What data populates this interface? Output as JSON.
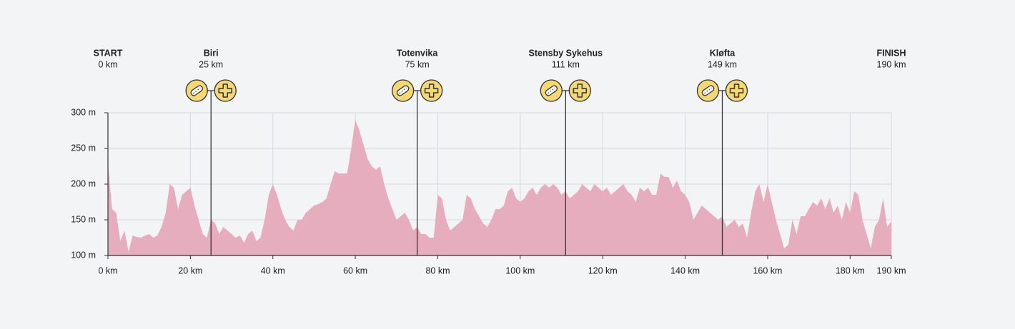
{
  "chart_data": {
    "type": "area",
    "color": "#e6adbf",
    "grid": true,
    "xlim": [
      0,
      190
    ],
    "ylim": [
      100,
      300
    ],
    "xticks": [
      {
        "value": 0,
        "label": "0 km"
      },
      {
        "value": 20,
        "label": "20 km"
      },
      {
        "value": 40,
        "label": "40 km"
      },
      {
        "value": 60,
        "label": "60 km"
      },
      {
        "value": 80,
        "label": "80 km"
      },
      {
        "value": 100,
        "label": "100 km"
      },
      {
        "value": 120,
        "label": "120 km"
      },
      {
        "value": 140,
        "label": "140 km"
      },
      {
        "value": 160,
        "label": "160 km"
      },
      {
        "value": 180,
        "label": "180 km"
      },
      {
        "value": 190,
        "label": "190 km"
      }
    ],
    "yticks": [
      {
        "value": 100,
        "label": "100 m"
      },
      {
        "value": 150,
        "label": "150 m"
      },
      {
        "value": 200,
        "label": "200 m"
      },
      {
        "value": 250,
        "label": "250 m"
      },
      {
        "value": 300,
        "label": "300 m"
      }
    ],
    "checkpoints": [
      {
        "name": "START",
        "km": 0,
        "km_label": "0 km"
      },
      {
        "name": "Biri",
        "km": 25,
        "km_label": "25 km"
      },
      {
        "name": "Totenvika",
        "km": 75,
        "km_label": "75 km"
      },
      {
        "name": "Stensby Sykehus",
        "km": 111,
        "km_label": "111 km"
      },
      {
        "name": "Kløfta",
        "km": 149,
        "km_label": "149 km"
      },
      {
        "name": "FINISH",
        "km": 190,
        "km_label": "190 km"
      }
    ],
    "x": [
      0,
      1,
      2,
      3,
      4,
      5,
      6,
      7,
      8,
      9,
      10,
      11,
      12,
      13,
      14,
      15,
      16,
      17,
      18,
      19,
      20,
      21,
      22,
      23,
      24,
      25,
      26,
      27,
      28,
      29,
      30,
      31,
      32,
      33,
      34,
      35,
      36,
      37,
      38,
      39,
      40,
      41,
      42,
      43,
      44,
      45,
      46,
      47,
      48,
      49,
      50,
      51,
      52,
      53,
      54,
      55,
      56,
      57,
      58,
      59,
      60,
      61,
      62,
      63,
      64,
      65,
      66,
      67,
      68,
      69,
      70,
      71,
      72,
      73,
      74,
      75,
      76,
      77,
      78,
      79,
      80,
      81,
      82,
      83,
      84,
      85,
      86,
      87,
      88,
      89,
      90,
      91,
      92,
      93,
      94,
      95,
      96,
      97,
      98,
      99,
      100,
      101,
      102,
      103,
      104,
      105,
      106,
      107,
      108,
      109,
      110,
      111,
      112,
      113,
      114,
      115,
      116,
      117,
      118,
      119,
      120,
      121,
      122,
      123,
      124,
      125,
      126,
      127,
      128,
      129,
      130,
      131,
      132,
      133,
      134,
      135,
      136,
      137,
      138,
      139,
      140,
      141,
      142,
      143,
      144,
      145,
      146,
      147,
      148,
      149,
      150,
      151,
      152,
      153,
      154,
      155,
      156,
      157,
      158,
      159,
      160,
      161,
      162,
      163,
      164,
      165,
      166,
      167,
      168,
      169,
      170,
      171,
      172,
      173,
      174,
      175,
      176,
      177,
      178,
      179,
      180,
      181,
      182,
      183,
      184,
      185,
      186,
      187,
      188,
      189,
      190
    ],
    "values": [
      230,
      165,
      160,
      120,
      135,
      105,
      128,
      126,
      125,
      128,
      130,
      125,
      128,
      140,
      160,
      200,
      195,
      165,
      185,
      190,
      195,
      170,
      150,
      130,
      125,
      150,
      145,
      130,
      140,
      135,
      130,
      125,
      128,
      118,
      130,
      135,
      120,
      125,
      150,
      185,
      200,
      185,
      165,
      150,
      140,
      135,
      150,
      150,
      160,
      165,
      170,
      172,
      175,
      180,
      200,
      218,
      215,
      215,
      215,
      250,
      290,
      275,
      255,
      235,
      225,
      220,
      225,
      200,
      180,
      165,
      150,
      155,
      160,
      150,
      135,
      140,
      130,
      130,
      125,
      125,
      185,
      180,
      150,
      135,
      140,
      145,
      150,
      185,
      180,
      165,
      155,
      145,
      140,
      150,
      165,
      165,
      170,
      190,
      195,
      180,
      175,
      180,
      190,
      195,
      185,
      195,
      200,
      195,
      200,
      195,
      185,
      190,
      180,
      185,
      190,
      200,
      195,
      190,
      200,
      195,
      190,
      195,
      185,
      190,
      195,
      200,
      190,
      185,
      175,
      195,
      190,
      195,
      185,
      185,
      215,
      210,
      210,
      195,
      205,
      190,
      185,
      175,
      150,
      160,
      170,
      165,
      160,
      155,
      150,
      155,
      140,
      145,
      150,
      140,
      145,
      125,
      160,
      190,
      200,
      175,
      200,
      175,
      150,
      130,
      110,
      115,
      150,
      130,
      155,
      155,
      165,
      175,
      170,
      180,
      165,
      180,
      160,
      170,
      150,
      175,
      160,
      190,
      185,
      150,
      130,
      110,
      140,
      150,
      180,
      140,
      148
    ]
  }
}
